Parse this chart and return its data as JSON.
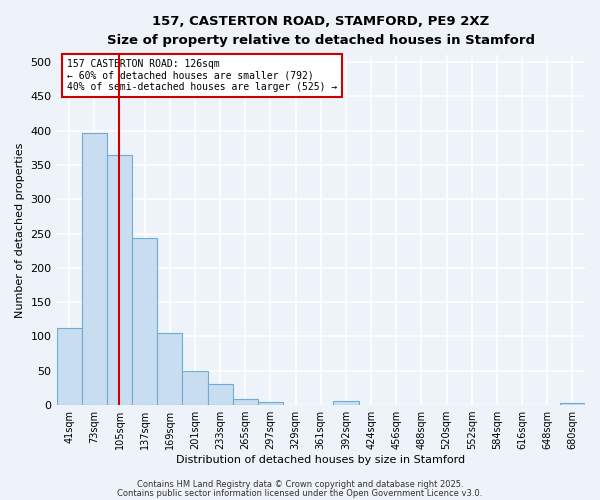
{
  "title": "157, CASTERTON ROAD, STAMFORD, PE9 2XZ",
  "subtitle": "Size of property relative to detached houses in Stamford",
  "xlabel": "Distribution of detached houses by size in Stamford",
  "ylabel": "Number of detached properties",
  "bar_labels": [
    "41sqm",
    "73sqm",
    "105sqm",
    "137sqm",
    "169sqm",
    "201sqm",
    "233sqm",
    "265sqm",
    "297sqm",
    "329sqm",
    "361sqm",
    "392sqm",
    "424sqm",
    "456sqm",
    "488sqm",
    "520sqm",
    "552sqm",
    "584sqm",
    "616sqm",
    "648sqm",
    "680sqm"
  ],
  "bar_values": [
    113,
    397,
    365,
    243,
    105,
    49,
    30,
    9,
    5,
    0,
    0,
    6,
    0,
    0,
    0,
    0,
    0,
    0,
    0,
    0,
    3
  ],
  "bar_color": "#c9ddf0",
  "bar_edge_color": "#6aaed6",
  "background_color": "#eef2f9",
  "grid_color": "#ffffff",
  "ylim": [
    0,
    510
  ],
  "yticks": [
    0,
    50,
    100,
    150,
    200,
    250,
    300,
    350,
    400,
    450,
    500
  ],
  "vline_x": 2.0,
  "vline_color": "#cc0000",
  "annotation_title": "157 CASTERTON ROAD: 126sqm",
  "annotation_line2": "← 60% of detached houses are smaller (792)",
  "annotation_line3": "40% of semi-detached houses are larger (525) →",
  "annotation_box_color": "#ffffff",
  "annotation_box_edge": "#cc0000",
  "footer1": "Contains HM Land Registry data © Crown copyright and database right 2025.",
  "footer2": "Contains public sector information licensed under the Open Government Licence v3.0."
}
